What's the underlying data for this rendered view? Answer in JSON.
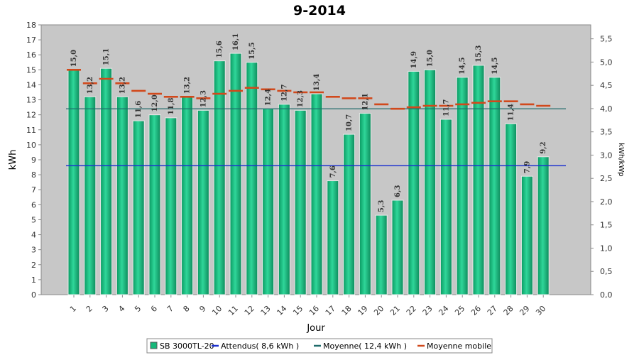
{
  "chart_data": {
    "type": "bar",
    "title": "9-2014",
    "xlabel": "Jour",
    "ylabel": "kWh",
    "y2label": "kWh/kWp",
    "ylim": [
      0,
      18
    ],
    "y2lim": [
      0,
      5.8
    ],
    "y_ticks": [
      "0",
      "1",
      "2",
      "3",
      "4",
      "5",
      "6",
      "7",
      "8",
      "9",
      "10",
      "11",
      "12",
      "13",
      "14",
      "15",
      "16",
      "17",
      "18"
    ],
    "y2_ticks": [
      "0,0",
      "0,5",
      "1,0",
      "1,5",
      "2,0",
      "2,5",
      "3,0",
      "3,5",
      "4,0",
      "4,5",
      "5,0",
      "5,5"
    ],
    "categories": [
      "1",
      "2",
      "3",
      "4",
      "5",
      "6",
      "7",
      "8",
      "9",
      "10",
      "11",
      "12",
      "13",
      "14",
      "15",
      "16",
      "17",
      "18",
      "19",
      "20",
      "21",
      "22",
      "23",
      "24",
      "25",
      "26",
      "27",
      "28",
      "29",
      "30"
    ],
    "series": [
      {
        "name": "SB 3000TL-20",
        "type": "bar",
        "color": "#16b87a",
        "values": [
          15.0,
          13.2,
          15.1,
          13.2,
          11.6,
          12.0,
          11.8,
          13.2,
          12.3,
          15.6,
          16.1,
          15.5,
          12.4,
          12.7,
          12.3,
          13.4,
          7.6,
          10.7,
          12.1,
          5.3,
          6.3,
          14.9,
          15.0,
          11.7,
          14.5,
          15.3,
          14.5,
          11.4,
          7.9,
          9.2
        ],
        "labels": [
          "15,0",
          "13,2",
          "15,1",
          "13,2",
          "11,6",
          "12,0",
          "11,8",
          "13,2",
          "12,3",
          "15,6",
          "16,1",
          "15,5",
          "12,4",
          "12,7",
          "12,3",
          "13,4",
          "7,6",
          "10,7",
          "12,1",
          "5,3",
          "6,3",
          "14,9",
          "15,0",
          "11,7",
          "14,5",
          "15,3",
          "14,5",
          "11,4",
          "7,9",
          "9,2"
        ]
      },
      {
        "name": "Attendus( 8,6 kWh )",
        "type": "hline",
        "color": "#1a2fd0",
        "value": 8.6
      },
      {
        "name": "Moyenne( 12,4 kWh )",
        "type": "hline",
        "color": "#1f6b6b",
        "value": 12.4
      },
      {
        "name": "Moyenne mobile",
        "type": "step",
        "color": "#d1491c",
        "values": [
          15.0,
          14.1,
          14.4,
          14.1,
          13.6,
          13.4,
          13.2,
          13.2,
          13.1,
          13.4,
          13.6,
          13.8,
          13.7,
          13.6,
          13.5,
          13.5,
          13.2,
          13.1,
          13.1,
          12.7,
          12.4,
          12.5,
          12.6,
          12.6,
          12.7,
          12.8,
          12.9,
          12.9,
          12.7,
          12.6
        ]
      }
    ],
    "grid": false,
    "legend_position": "bottom-center"
  }
}
